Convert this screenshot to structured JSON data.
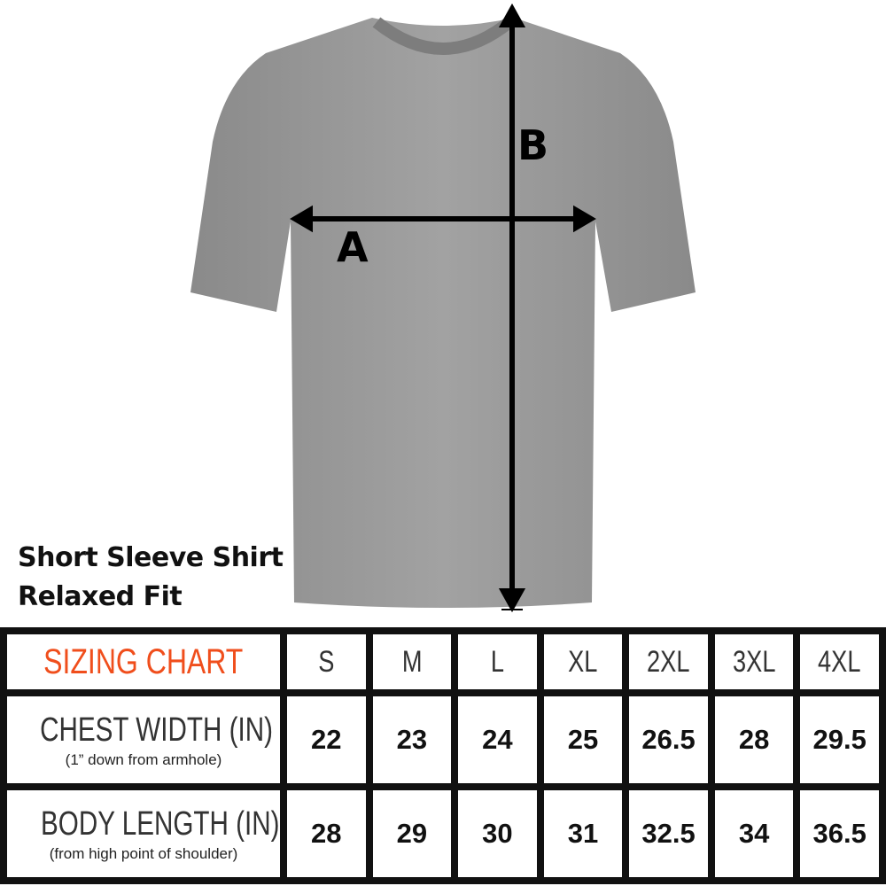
{
  "product": {
    "line1": "Short Sleeve Shirt",
    "line2": "Relaxed Fit"
  },
  "diagram": {
    "label_a": "A",
    "label_b": "B",
    "shirt_color": "#9a9a9a"
  },
  "table": {
    "title": "SIZING CHART",
    "title_color": "#f04e1c",
    "sizes": [
      "S",
      "M",
      "L",
      "XL",
      "2XL",
      "3XL",
      "4XL"
    ],
    "rows": [
      {
        "label": "CHEST WIDTH (IN)",
        "sub": "(1” down from armhole)",
        "values": [
          "22",
          "23",
          "24",
          "25",
          "26.5",
          "28",
          "29.5"
        ]
      },
      {
        "label": "BODY LENGTH (IN)",
        "sub": "(from high point of shoulder)",
        "values": [
          "28",
          "29",
          "30",
          "31",
          "32.5",
          "34",
          "36.5"
        ]
      }
    ]
  }
}
